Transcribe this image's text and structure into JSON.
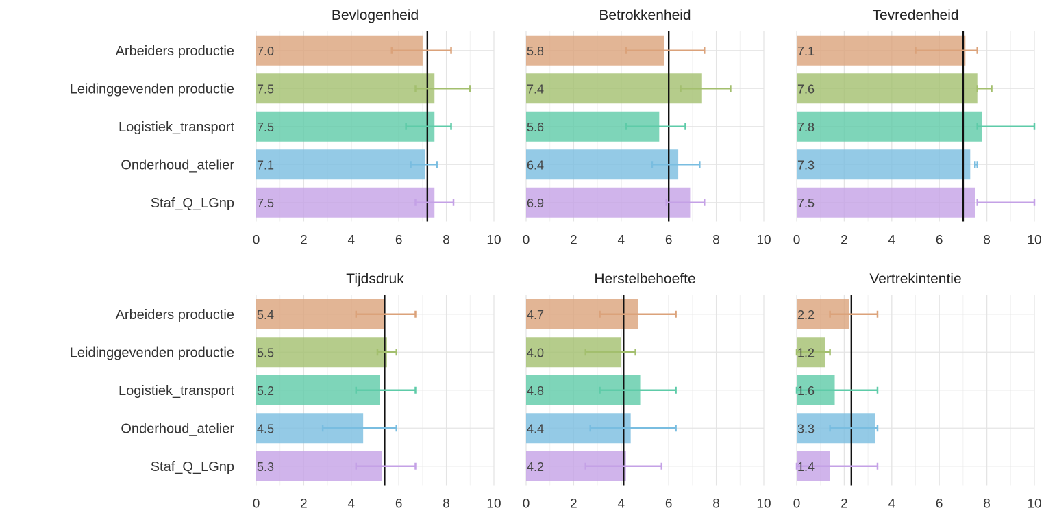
{
  "chart_data": {
    "type": "bar",
    "orientation": "horizontal",
    "categories": [
      "Arbeiders productie",
      "Leidinggevenden productie",
      "Logistiek_transport",
      "Onderhoud_atelier",
      "Staf_Q_LGnp"
    ],
    "category_colors": [
      "#dba27a",
      "#a3bf6e",
      "#5ecba8",
      "#79bde0",
      "#c4a1e6"
    ],
    "xlim": [
      0,
      10
    ],
    "xticks": [
      0,
      2,
      4,
      6,
      8,
      10
    ],
    "grid": true,
    "legend": "none",
    "panels": [
      {
        "title": "Bevlogenheid",
        "values": [
          7.0,
          7.5,
          7.5,
          7.1,
          7.5
        ],
        "value_labels": [
          "7.0",
          "7.5",
          "7.5",
          "7.1",
          "7.5"
        ],
        "error_low": [
          5.7,
          6.7,
          6.3,
          6.5,
          6.7
        ],
        "error_high": [
          8.2,
          9.0,
          8.2,
          7.6,
          8.3
        ],
        "reference": 7.2
      },
      {
        "title": "Betrokkenheid",
        "values": [
          5.8,
          7.4,
          5.6,
          6.4,
          6.9
        ],
        "value_labels": [
          "5.8",
          "7.4",
          "5.6",
          "6.4",
          "6.9"
        ],
        "error_low": [
          4.2,
          6.5,
          4.2,
          5.3,
          5.9
        ],
        "error_high": [
          7.5,
          8.6,
          6.7,
          7.3,
          7.5
        ],
        "reference": 6.0
      },
      {
        "title": "Tevredenheid",
        "values": [
          7.1,
          7.6,
          7.8,
          7.3,
          7.5
        ],
        "value_labels": [
          "7.1",
          "7.6",
          "7.8",
          "7.3",
          "7.5"
        ],
        "error_low": [
          5.0,
          7.6,
          7.6,
          7.5,
          7.6
        ],
        "error_high": [
          7.6,
          8.2,
          10.0,
          7.6,
          10.0
        ],
        "reference": 7.0
      },
      {
        "title": "Tijdsdruk",
        "values": [
          5.4,
          5.5,
          5.2,
          4.5,
          5.3
        ],
        "value_labels": [
          "5.4",
          "5.5",
          "5.2",
          "4.5",
          "5.3"
        ],
        "error_low": [
          4.2,
          5.1,
          4.2,
          2.8,
          4.2
        ],
        "error_high": [
          6.7,
          5.9,
          6.7,
          5.9,
          6.7
        ],
        "reference": 5.4
      },
      {
        "title": "Herstelbehoefte",
        "values": [
          4.7,
          4.0,
          4.8,
          4.4,
          4.2
        ],
        "value_labels": [
          "4.7",
          "4.0",
          "4.8",
          "4.4",
          "4.2"
        ],
        "error_low": [
          3.1,
          2.5,
          3.1,
          2.7,
          2.5
        ],
        "error_high": [
          6.3,
          4.6,
          6.3,
          6.3,
          5.7
        ],
        "reference": 4.1
      },
      {
        "title": "Vertrekintentie",
        "values": [
          2.2,
          1.2,
          1.6,
          3.3,
          1.4
        ],
        "value_labels": [
          "2.2",
          "1.2",
          "1.6",
          "3.3",
          "1.4"
        ],
        "error_low": [
          1.4,
          0.0,
          0.0,
          1.4,
          0.0
        ],
        "error_high": [
          3.4,
          1.4,
          3.4,
          3.4,
          3.4
        ],
        "reference": 2.3
      }
    ]
  }
}
